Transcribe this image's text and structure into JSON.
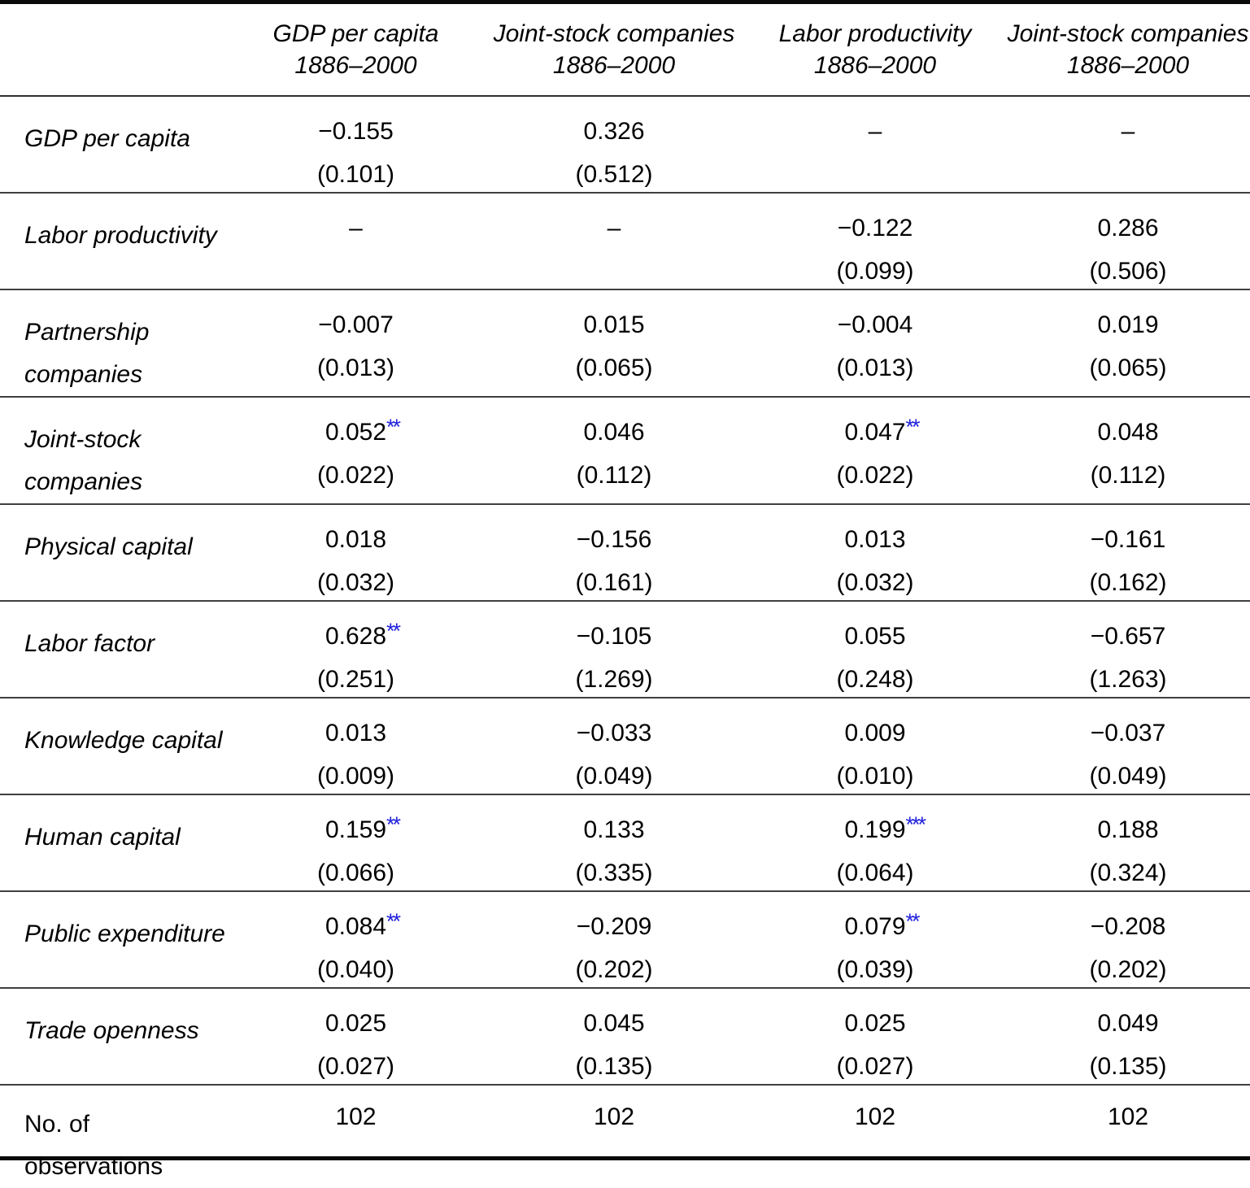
{
  "table": {
    "styles": {
      "star_color": "#2222dd",
      "rule_color": "#3f3f3f"
    },
    "columns": [
      {
        "line1": "GDP per capita",
        "line2": "1886–2000"
      },
      {
        "line1": "Joint-stock companies",
        "line2": "1886–2000"
      },
      {
        "line1": "Labor productivity",
        "line2": "1886–2000"
      },
      {
        "line1": "Joint-stock companies",
        "line2": "1886–2000"
      }
    ],
    "rows": [
      {
        "label": "GDP per capita",
        "cells": [
          {
            "value": "−0.155",
            "stars": "",
            "se": "(0.101)"
          },
          {
            "value": "0.326",
            "stars": "",
            "se": "(0.512)"
          },
          {
            "value": "–",
            "stars": "",
            "se": ""
          },
          {
            "value": "–",
            "stars": "",
            "se": ""
          }
        ]
      },
      {
        "label": "Labor productivity",
        "cells": [
          {
            "value": "–",
            "stars": "",
            "se": ""
          },
          {
            "value": "–",
            "stars": "",
            "se": ""
          },
          {
            "value": "−0.122",
            "stars": "",
            "se": "(0.099)"
          },
          {
            "value": "0.286",
            "stars": "",
            "se": "(0.506)"
          }
        ]
      },
      {
        "label": "Partnership companies",
        "cells": [
          {
            "value": "−0.007",
            "stars": "",
            "se": "(0.013)"
          },
          {
            "value": "0.015",
            "stars": "",
            "se": "(0.065)"
          },
          {
            "value": "−0.004",
            "stars": "",
            "se": "(0.013)"
          },
          {
            "value": "0.019",
            "stars": "",
            "se": "(0.065)"
          }
        ]
      },
      {
        "label": "Joint-stock companies",
        "cells": [
          {
            "value": "0.052",
            "stars": "**",
            "se": "(0.022)"
          },
          {
            "value": "0.046",
            "stars": "",
            "se": "(0.112)"
          },
          {
            "value": "0.047",
            "stars": "**",
            "se": "(0.022)"
          },
          {
            "value": "0.048",
            "stars": "",
            "se": "(0.112)"
          }
        ]
      },
      {
        "label": "Physical capital",
        "cells": [
          {
            "value": "0.018",
            "stars": "",
            "se": "(0.032)"
          },
          {
            "value": "−0.156",
            "stars": "",
            "se": "(0.161)"
          },
          {
            "value": "0.013",
            "stars": "",
            "se": "(0.032)"
          },
          {
            "value": "−0.161",
            "stars": "",
            "se": "(0.162)"
          }
        ]
      },
      {
        "label": "Labor factor",
        "cells": [
          {
            "value": "0.628",
            "stars": "**",
            "se": "(0.251)"
          },
          {
            "value": "−0.105",
            "stars": "",
            "se": "(1.269)"
          },
          {
            "value": "0.055",
            "stars": "",
            "se": "(0.248)"
          },
          {
            "value": "−0.657",
            "stars": "",
            "se": "(1.263)"
          }
        ]
      },
      {
        "label": "Knowledge capital",
        "cells": [
          {
            "value": "0.013",
            "stars": "",
            "se": "(0.009)"
          },
          {
            "value": "−0.033",
            "stars": "",
            "se": "(0.049)"
          },
          {
            "value": "0.009",
            "stars": "",
            "se": "(0.010)"
          },
          {
            "value": "−0.037",
            "stars": "",
            "se": "(0.049)"
          }
        ]
      },
      {
        "label": "Human capital",
        "cells": [
          {
            "value": "0.159",
            "stars": "**",
            "se": "(0.066)"
          },
          {
            "value": "0.133",
            "stars": "",
            "se": "(0.335)"
          },
          {
            "value": "0.199",
            "stars": "***",
            "se": "(0.064)"
          },
          {
            "value": "0.188",
            "stars": "",
            "se": "(0.324)"
          }
        ]
      },
      {
        "label": "Public expenditure",
        "cells": [
          {
            "value": "0.084",
            "stars": "**",
            "se": "(0.040)"
          },
          {
            "value": "−0.209",
            "stars": "",
            "se": "(0.202)"
          },
          {
            "value": "0.079",
            "stars": "**",
            "se": "(0.039)"
          },
          {
            "value": "−0.208",
            "stars": "",
            "se": "(0.202)"
          }
        ]
      },
      {
        "label": "Trade openness",
        "cells": [
          {
            "value": "0.025",
            "stars": "",
            "se": "(0.027)"
          },
          {
            "value": "0.045",
            "stars": "",
            "se": "(0.135)"
          },
          {
            "value": "0.025",
            "stars": "",
            "se": "(0.027)"
          },
          {
            "value": "0.049",
            "stars": "",
            "se": "(0.135)"
          }
        ]
      },
      {
        "label": "No. of\nobservations",
        "last": true,
        "cells": [
          {
            "value": "102",
            "stars": "",
            "se": ""
          },
          {
            "value": "102",
            "stars": "",
            "se": ""
          },
          {
            "value": "102",
            "stars": "",
            "se": ""
          },
          {
            "value": "102",
            "stars": "",
            "se": ""
          }
        ]
      }
    ]
  }
}
